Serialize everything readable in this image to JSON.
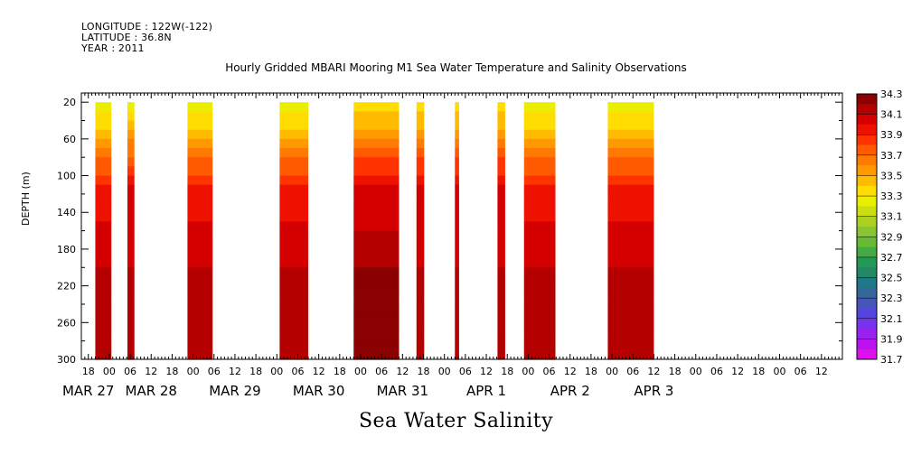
{
  "header": {
    "longitude": "LONGITUDE : 122W(-122)",
    "latitude": "LATITUDE : 36.8N",
    "year": "YEAR : 2011"
  },
  "chart_data": {
    "type": "heatmap",
    "title": "Hourly Gridded MBARI Mooring M1 Sea Water Temperature and Salinity Observations",
    "xlabel": "Sea Water Salinity",
    "ylabel": "DEPTH (m)",
    "ylim": [
      300,
      10
    ],
    "y_ticks": [
      20,
      60,
      100,
      140,
      180,
      220,
      260,
      300
    ],
    "x_range_hours": [
      -8,
      210
    ],
    "x_hour_ticks": [
      {
        "t": -6,
        "label": "18"
      },
      {
        "t": 0,
        "label": "00"
      },
      {
        "t": 6,
        "label": "06"
      },
      {
        "t": 12,
        "label": "12"
      },
      {
        "t": 18,
        "label": "18"
      },
      {
        "t": 24,
        "label": "00"
      },
      {
        "t": 30,
        "label": "06"
      },
      {
        "t": 36,
        "label": "12"
      },
      {
        "t": 42,
        "label": "18"
      },
      {
        "t": 48,
        "label": "00"
      },
      {
        "t": 54,
        "label": "06"
      },
      {
        "t": 60,
        "label": "12"
      },
      {
        "t": 66,
        "label": "18"
      },
      {
        "t": 72,
        "label": "00"
      },
      {
        "t": 78,
        "label": "06"
      },
      {
        "t": 84,
        "label": "12"
      },
      {
        "t": 90,
        "label": "18"
      },
      {
        "t": 96,
        "label": "00"
      },
      {
        "t": 102,
        "label": "06"
      },
      {
        "t": 108,
        "label": "12"
      },
      {
        "t": 114,
        "label": "18"
      },
      {
        "t": 120,
        "label": "00"
      },
      {
        "t": 126,
        "label": "06"
      },
      {
        "t": 132,
        "label": "12"
      },
      {
        "t": 138,
        "label": "18"
      },
      {
        "t": 144,
        "label": "00"
      },
      {
        "t": 150,
        "label": "06"
      },
      {
        "t": 156,
        "label": "12"
      },
      {
        "t": 162,
        "label": "18"
      },
      {
        "t": 168,
        "label": "00"
      },
      {
        "t": 174,
        "label": "06"
      },
      {
        "t": 180,
        "label": "12"
      },
      {
        "t": 186,
        "label": "18"
      },
      {
        "t": 192,
        "label": "00"
      },
      {
        "t": 198,
        "label": "06"
      },
      {
        "t": 204,
        "label": "12"
      }
    ],
    "date_labels": [
      {
        "t": -6,
        "label": "MAR 27"
      },
      {
        "t": 12,
        "label": "MAR 28"
      },
      {
        "t": 36,
        "label": "MAR 29"
      },
      {
        "t": 60,
        "label": "MAR 30"
      },
      {
        "t": 84,
        "label": "MAR 31"
      },
      {
        "t": 108,
        "label": "APR  1"
      },
      {
        "t": 132,
        "label": "APR  2"
      },
      {
        "t": 156,
        "label": "APR  3"
      }
    ],
    "data_segments": [
      {
        "start": -4,
        "end": 0.6,
        "surface": 33.2,
        "mid": 33.9,
        "deep": 34.2
      },
      {
        "start": 5.2,
        "end": 7.2,
        "surface": 33.2,
        "mid": 34.0,
        "deep": 34.2
      },
      {
        "start": 22.4,
        "end": 29.6,
        "surface": 33.2,
        "mid": 33.9,
        "deep": 34.2
      },
      {
        "start": 48.8,
        "end": 57.0,
        "surface": 33.2,
        "mid": 33.9,
        "deep": 34.2
      },
      {
        "start": 70.0,
        "end": 83.0,
        "surface": 33.3,
        "mid": 34.0,
        "deep": 34.3
      },
      {
        "start": 88.0,
        "end": 90.2,
        "surface": 33.3,
        "mid": 34.0,
        "deep": 34.2
      },
      {
        "start": 99.0,
        "end": 100.2,
        "surface": 33.3,
        "mid": 34.0,
        "deep": 34.2
      },
      {
        "start": 111.2,
        "end": 113.4,
        "surface": 33.3,
        "mid": 34.0,
        "deep": 34.2
      },
      {
        "start": 118.8,
        "end": 127.8,
        "surface": 33.2,
        "mid": 33.9,
        "deep": 34.2
      },
      {
        "start": 142.8,
        "end": 156.0,
        "surface": 33.2,
        "mid": 33.9,
        "deep": 34.2
      }
    ],
    "colorbar": {
      "levels": [
        "34.3",
        "34.1",
        "33.9",
        "33.7",
        "33.5",
        "33.3",
        "33.1",
        "32.9",
        "32.7",
        "32.5",
        "32.3",
        "32.1",
        "31.9",
        "31.7"
      ],
      "colors": [
        "#8b0000",
        "#b50000",
        "#d40000",
        "#ee1100",
        "#ff3300",
        "#ff5a00",
        "#ff7a00",
        "#ff9900",
        "#ffbb00",
        "#ffdd00",
        "#eaee00",
        "#ccdd11",
        "#aad022",
        "#88c433",
        "#66bb33",
        "#44aa44",
        "#229955",
        "#228866",
        "#227788",
        "#336699",
        "#4455bb",
        "#5544dd",
        "#7733ee",
        "#9922ee",
        "#bb11ee",
        "#dd11ee"
      ]
    }
  }
}
